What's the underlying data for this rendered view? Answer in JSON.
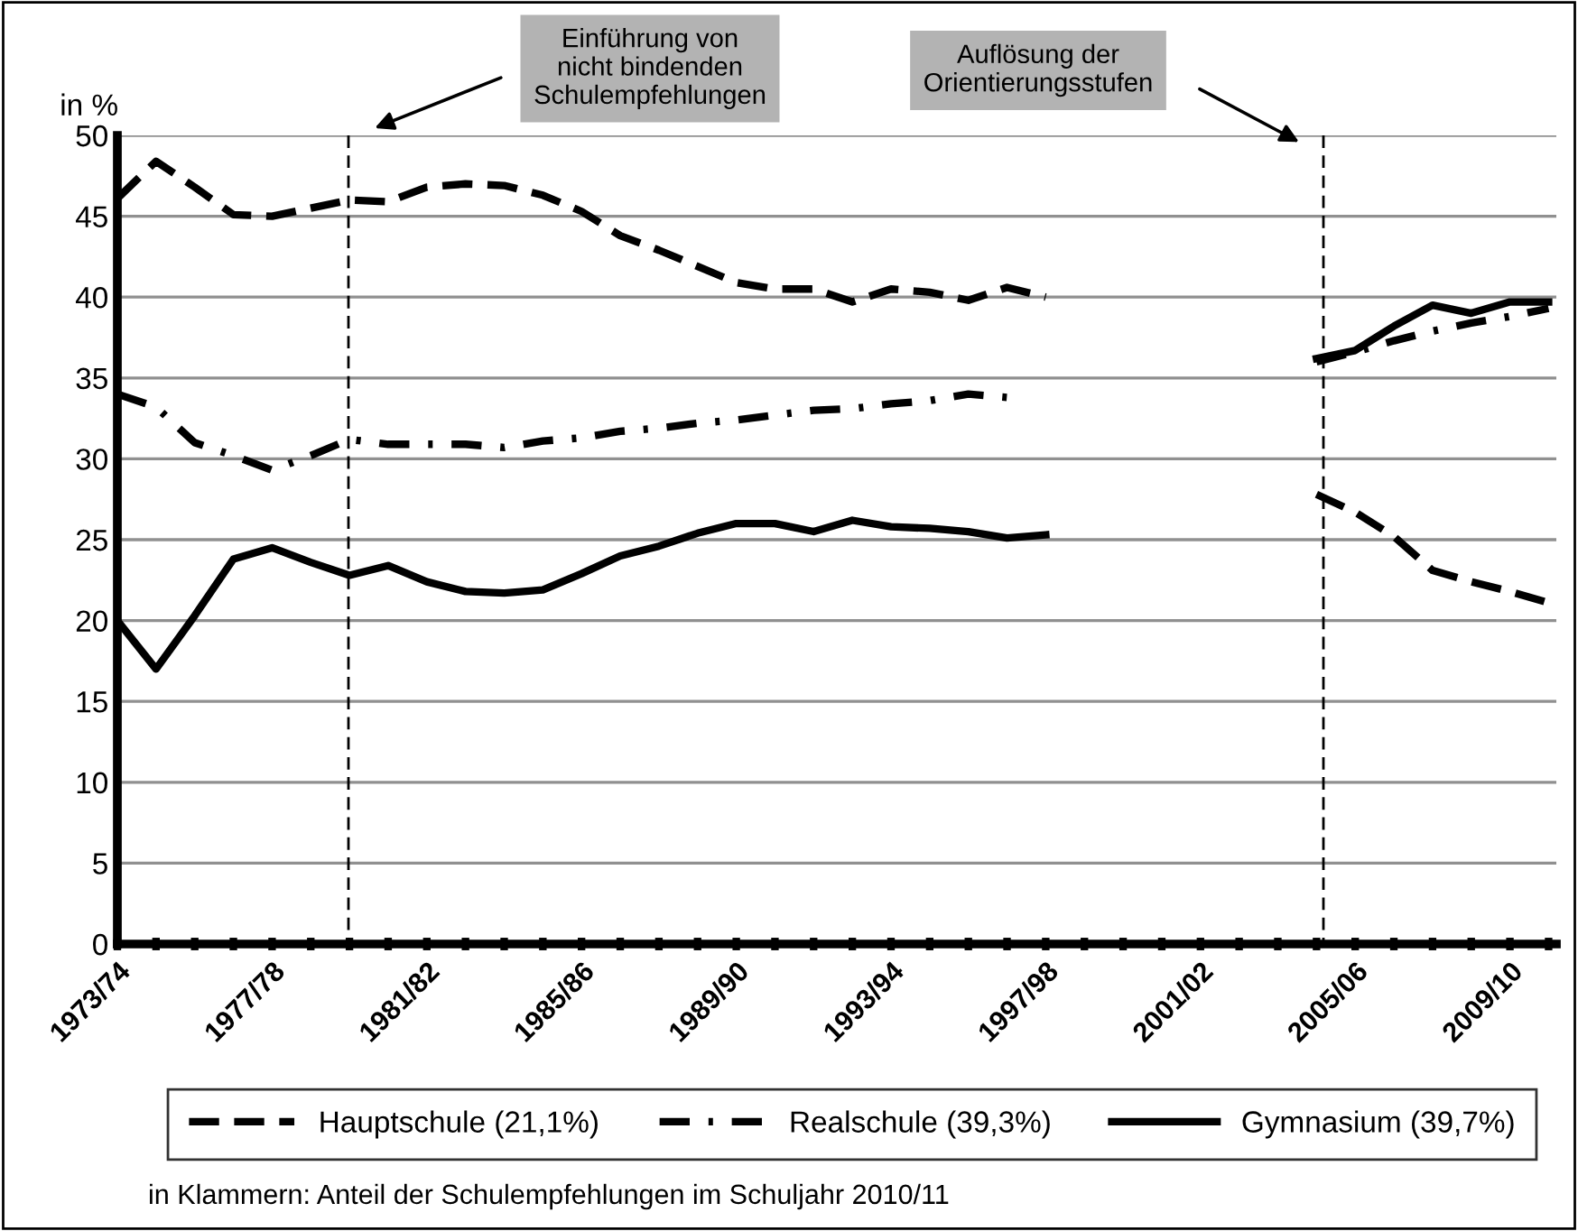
{
  "chart_data": {
    "type": "line",
    "ylabel": "in %",
    "categories": [
      "1973/74",
      null,
      null,
      null,
      "1977/78",
      null,
      null,
      null,
      "1981/82",
      null,
      null,
      null,
      "1985/86",
      null,
      null,
      null,
      "1989/90",
      null,
      null,
      null,
      "1993/94",
      null,
      null,
      null,
      "1997/98",
      null,
      null,
      null,
      "2001/02",
      null,
      null,
      null,
      "2005/06",
      null,
      null,
      null,
      "2009/10",
      null
    ],
    "series": [
      {
        "name": "Hauptschule (21,1%)",
        "color": "#000000",
        "line_style": "dashed",
        "values": [
          46.1,
          48.4,
          46.8,
          45.1,
          45.0,
          45.5,
          46.0,
          45.9,
          46.8,
          47.0,
          46.9,
          46.3,
          45.3,
          43.8,
          42.9,
          41.9,
          40.9,
          40.5,
          40.5,
          39.7,
          40.5,
          40.3,
          39.8,
          40.6,
          40.0,
          null,
          null,
          null,
          null,
          null,
          null,
          27.8,
          26.7,
          25.2,
          23.1,
          22.4,
          21.8,
          21.1
        ]
      },
      {
        "name": "Realschule (39,3%)",
        "color": "#000000",
        "line_style": "dashdot",
        "values": [
          34.0,
          33.2,
          31.0,
          30.2,
          29.3,
          30.2,
          31.2,
          30.9,
          30.9,
          30.9,
          30.7,
          31.1,
          31.3,
          31.7,
          31.9,
          32.2,
          32.4,
          32.7,
          33.0,
          33.1,
          33.4,
          33.6,
          34.0,
          33.8,
          null,
          null,
          null,
          null,
          null,
          null,
          null,
          36.0,
          36.6,
          37.3,
          37.9,
          38.4,
          38.8,
          39.3
        ]
      },
      {
        "name": "Gymnasium (39,7%)",
        "color": "#000000",
        "line_style": "solid",
        "values": [
          20.0,
          17.0,
          20.3,
          23.8,
          24.5,
          23.6,
          22.8,
          23.4,
          22.4,
          21.8,
          21.7,
          21.9,
          22.9,
          24.0,
          24.6,
          25.4,
          26.0,
          26.0,
          25.5,
          26.2,
          25.8,
          25.7,
          25.5,
          25.1,
          25.3,
          null,
          null,
          null,
          null,
          null,
          null,
          36.2,
          36.7,
          38.2,
          39.5,
          39.0,
          39.7,
          39.7
        ]
      }
    ],
    "ylim": [
      0,
      50
    ],
    "yticks": [
      0,
      5,
      10,
      15,
      20,
      25,
      30,
      35,
      40,
      45,
      50
    ],
    "grid": "y",
    "legend": "bottom",
    "annotations": [
      "Einführung von\nnicht bindenden\nSchulempfehlungen",
      "Auflösung der\nOrientierungsstufen",
      "in Klammern: Anteil der Schulempfehlungen im Schuljahr 2010/11"
    ]
  }
}
